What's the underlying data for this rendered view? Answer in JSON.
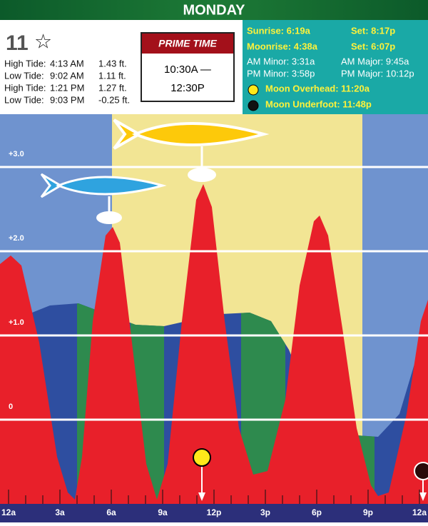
{
  "header": {
    "day": "MONDAY"
  },
  "day_rating": {
    "number": "11",
    "star": "☆"
  },
  "tides": [
    [
      "High Tide:",
      "4:13 AM",
      "1.43 ft."
    ],
    [
      "Low Tide:",
      "9:02 AM",
      "1.11 ft."
    ],
    [
      "High Tide:",
      "1:21 PM",
      "1.27 ft."
    ],
    [
      "Low Tide:",
      "9:03 PM",
      "-0.25 ft."
    ]
  ],
  "prime_time": {
    "title": "PRIME TIME",
    "start": "10:30A —",
    "end": "12:30P"
  },
  "sun_moon": {
    "sunrise": "Sunrise: 6:19a",
    "sunset": "Set: 8:17p",
    "moonrise": "Moonrise: 4:38a",
    "moonset": "Set: 6:07p",
    "am_minor": "AM Minor: 3:31a",
    "am_major": "AM Major: 9:45a",
    "pm_minor": "PM Minor: 3:58p",
    "pm_major": "PM Major: 10:12p",
    "moon_overhead": "Moon Overhead: 11:20a",
    "moon_underfoot": "Moon Underfoot: 11:48p"
  },
  "chart": {
    "y_labels": [
      "+3.0",
      "+2.0",
      "+1.0",
      "0"
    ],
    "x_labels": [
      "12a",
      "3a",
      "6a",
      "9a",
      "12p",
      "3p",
      "6p",
      "9p",
      "12a"
    ]
  }
}
